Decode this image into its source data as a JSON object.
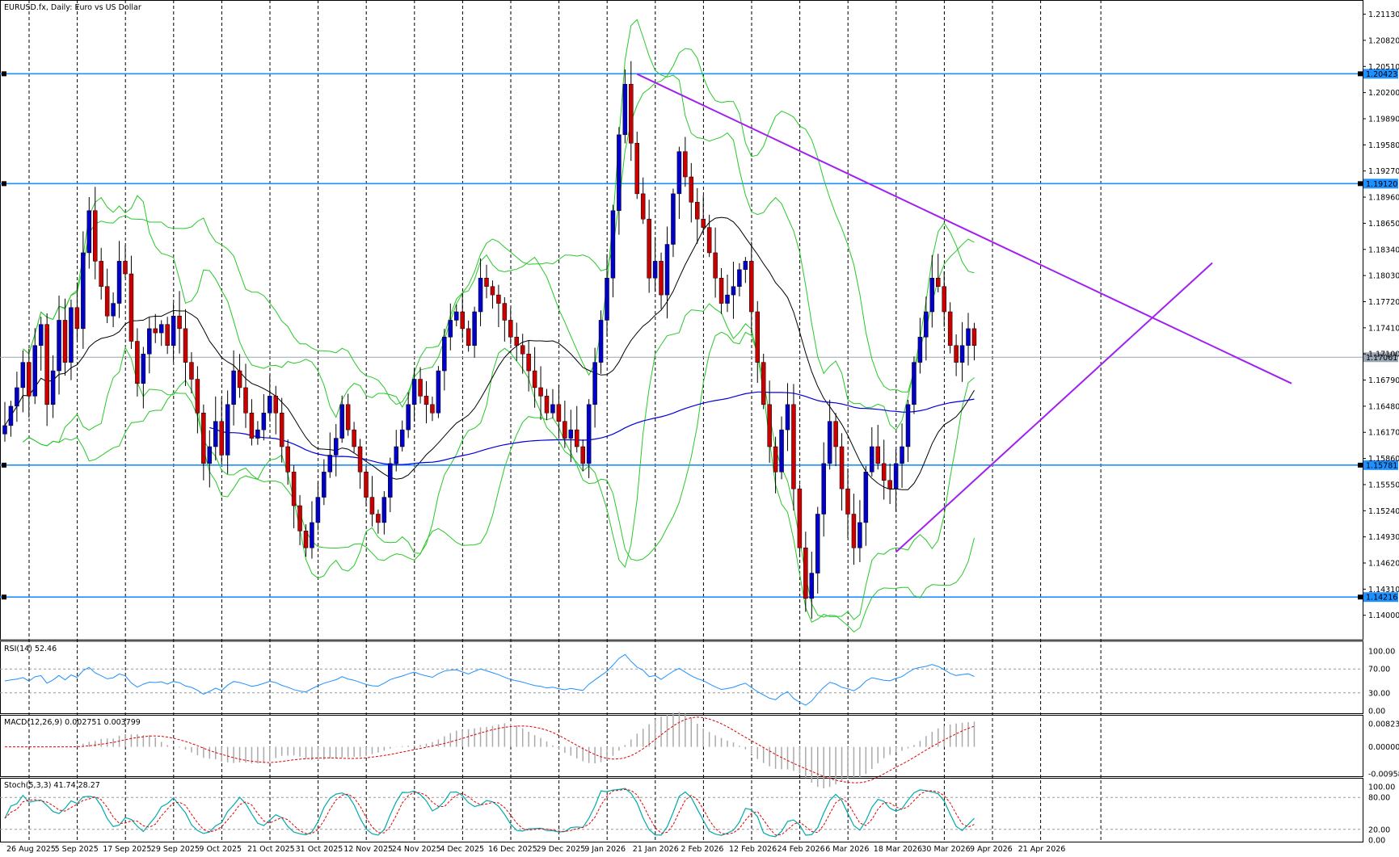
{
  "header": {
    "title": "EURUSD.fx, Daily:  Euro vs US Dollar"
  },
  "colors": {
    "bull_body": "#0000c8",
    "bear_body": "#c80000",
    "wick": "#000000",
    "bollinger": "#28c828",
    "ma_mid": "#000000",
    "ma_long": "#0000dd",
    "hline": "#1e90ff",
    "trendline": "#a020f0",
    "rsi_line": "#1e90ff",
    "signal_line": "#e00000",
    "stoch_main": "#00aaaa",
    "grid": "#000000"
  },
  "price_axis": {
    "ticks": [
      "1.21130",
      "1.20820",
      "1.20510",
      "1.20200",
      "1.19890",
      "1.19580",
      "1.19270",
      "1.18960",
      "1.18650",
      "1.18340",
      "1.18030",
      "1.17720",
      "1.17410",
      "1.17100",
      "1.16790",
      "1.16480",
      "1.16170",
      "1.15860",
      "1.15550",
      "1.15240",
      "1.14930",
      "1.14620",
      "1.14310",
      "1.14000"
    ],
    "range": [
      1.1371,
      1.2126
    ],
    "hlines": [
      {
        "label": "1.20423",
        "value": 1.20423
      },
      {
        "label": "1.19120",
        "value": 1.1912
      },
      {
        "label": "1.17061",
        "value": 1.17061,
        "gray": true
      },
      {
        "label": "1.15781",
        "value": 1.15781
      },
      {
        "label": "1.14216",
        "value": 1.14216
      }
    ]
  },
  "rsi": {
    "label": "RSI(14) 52.46",
    "ticks": [
      "100.00",
      "70.00",
      "30.00",
      "0.00"
    ],
    "range": [
      0,
      100
    ],
    "levels": [
      70,
      30
    ]
  },
  "macd": {
    "label": "MACD(12,26,9) 0.002751 0.003799",
    "ticks": [
      "0.008232",
      "0.000000",
      "-0.009586"
    ],
    "range": [
      -0.009586,
      0.008232
    ]
  },
  "stoch": {
    "label": "Stoch(5,3,3) 41.74 28.27",
    "ticks": [
      "100.00",
      "80.00",
      "20.00",
      "0.00"
    ],
    "range": [
      0,
      100
    ],
    "levels": [
      80,
      20
    ]
  },
  "time_axis": [
    {
      "label": "26 Aug 2025",
      "i": 0
    },
    {
      "label": "5 Sep 2025",
      "i": 8
    },
    {
      "label": "17 Sep 2025",
      "i": 16
    },
    {
      "label": "29 Sep 2025",
      "i": 24
    },
    {
      "label": "9 Oct 2025",
      "i": 32
    },
    {
      "label": "21 Oct 2025",
      "i": 40
    },
    {
      "label": "31 Oct 2025",
      "i": 48
    },
    {
      "label": "12 Nov 2025",
      "i": 56
    },
    {
      "label": "24 Nov 2025",
      "i": 64
    },
    {
      "label": "4 Dec 2025",
      "i": 72
    },
    {
      "label": "16 Dec 2025",
      "i": 80
    },
    {
      "label": "29 Dec 2025",
      "i": 88
    },
    {
      "label": "9 Jan 2026",
      "i": 96
    },
    {
      "label": "21 Jan 2026",
      "i": 104
    },
    {
      "label": "2 Feb 2026",
      "i": 112
    },
    {
      "label": "12 Feb 2026",
      "i": 120
    },
    {
      "label": "24 Feb 2026",
      "i": 128
    },
    {
      "label": "6 Mar 2026",
      "i": 136
    },
    {
      "label": "18 Mar 2026",
      "i": 144
    },
    {
      "label": "30 Mar 2026",
      "i": 152
    },
    {
      "label": "9 Apr 2026",
      "i": 160
    },
    {
      "label": "21 Apr 2026",
      "i": 168
    }
  ],
  "chart_data": {
    "type": "candlestick",
    "closes": [
      1.1625,
      1.1648,
      1.167,
      1.17,
      1.166,
      1.172,
      1.1745,
      1.165,
      1.169,
      1.175,
      1.17,
      1.1765,
      1.174,
      1.183,
      1.188,
      1.182,
      1.179,
      1.1755,
      1.177,
      1.182,
      1.1805,
      1.1725,
      1.1675,
      1.171,
      1.174,
      1.1735,
      1.1745,
      1.172,
      1.1755,
      1.174,
      1.17,
      1.168,
      1.164,
      1.158,
      1.16,
      1.163,
      1.159,
      1.165,
      1.169,
      1.167,
      1.164,
      1.161,
      1.162,
      1.164,
      1.166,
      1.164,
      1.16,
      1.157,
      1.153,
      1.15,
      1.148,
      1.151,
      1.154,
      1.157,
      1.159,
      1.161,
      1.165,
      1.162,
      1.16,
      1.157,
      1.154,
      1.152,
      1.151,
      1.154,
      1.158,
      1.16,
      1.162,
      1.165,
      1.168,
      1.166,
      1.165,
      1.164,
      1.169,
      1.173,
      1.175,
      1.176,
      1.174,
      1.172,
      1.176,
      1.18,
      1.179,
      1.178,
      1.177,
      1.175,
      1.173,
      1.172,
      1.171,
      1.169,
      1.167,
      1.166,
      1.164,
      1.165,
      1.163,
      1.161,
      1.162,
      1.16,
      1.158,
      1.165,
      1.17,
      1.175,
      1.18,
      1.188,
      1.197,
      1.203,
      1.196,
      1.19,
      1.187,
      1.18,
      1.182,
      1.178,
      1.184,
      1.19,
      1.195,
      1.192,
      1.189,
      1.187,
      1.186,
      1.183,
      1.18,
      1.177,
      1.178,
      1.179,
      1.181,
      1.182,
      1.176,
      1.17,
      1.165,
      1.16,
      1.157,
      1.162,
      1.165,
      1.155,
      1.148,
      1.142,
      1.145,
      1.152,
      1.158,
      1.163,
      1.16,
      1.155,
      1.152,
      1.148,
      1.151,
      1.157,
      1.16,
      1.158,
      1.156,
      1.155,
      1.158,
      1.16,
      1.165,
      1.17,
      1.173,
      1.176,
      1.18,
      1.179,
      1.176,
      1.172,
      1.17,
      1.172,
      1.174,
      1.172
    ],
    "price_range": [
      1.1371,
      1.2126
    ]
  }
}
